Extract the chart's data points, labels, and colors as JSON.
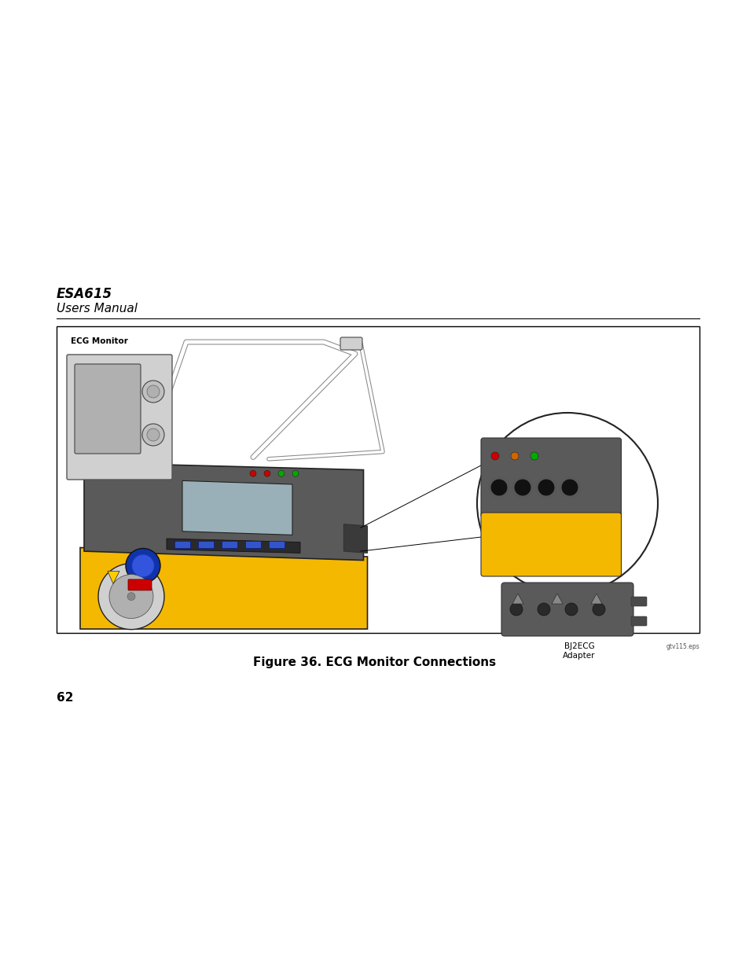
{
  "page_width": 9.54,
  "page_height": 12.35,
  "bg_color": "#ffffff",
  "header_title": "ESA615",
  "header_subtitle": "Users Manual",
  "figure_caption": "Figure 36. ECG Monitor Connections",
  "file_label": "gtv115.eps",
  "page_number": "62",
  "ecg_monitor_label": "ECG Monitor",
  "bj2ecg_label": "BJ2ECG\nAdapter"
}
